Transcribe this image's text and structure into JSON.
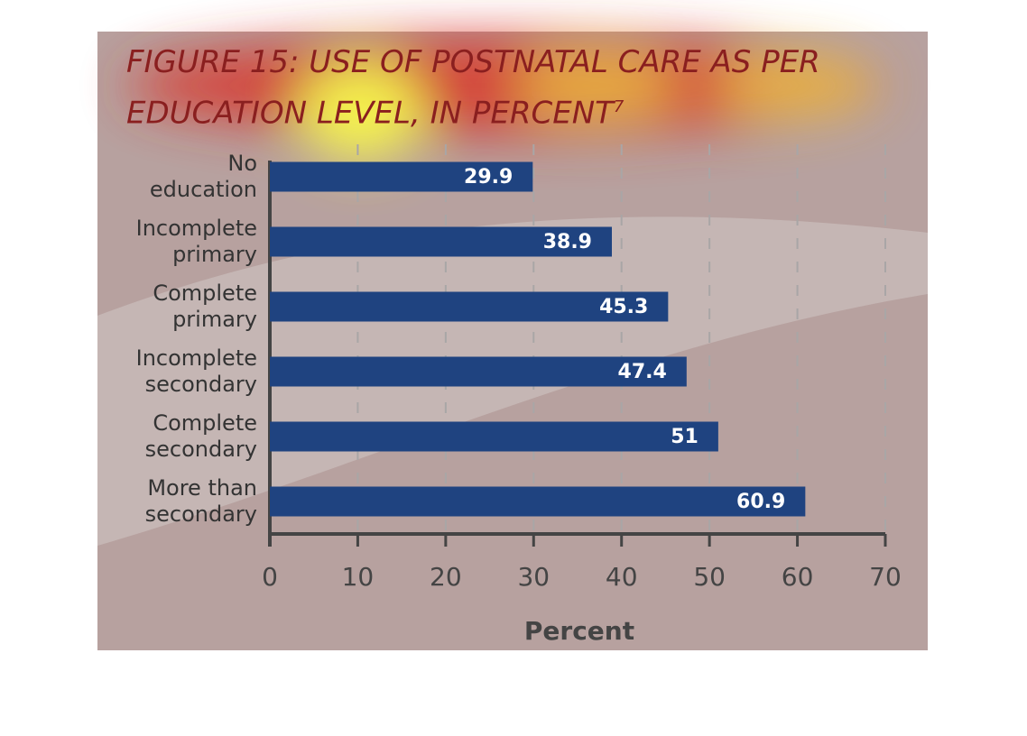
{
  "chart_data": {
    "type": "hbar",
    "title": "FIGURE 15: USE OF POSTNATAL CARE AS PER EDUCATION LEVEL, IN PERCENT",
    "title_note": "7",
    "categories": [
      [
        "No",
        "education"
      ],
      [
        "Incomplete",
        "primary"
      ],
      [
        "Complete",
        "primary"
      ],
      [
        "Incomplete",
        "secondary"
      ],
      [
        "Complete",
        "secondary"
      ],
      [
        "More than",
        "secondary"
      ]
    ],
    "values": [
      29.9,
      38.9,
      45.3,
      47.4,
      51,
      60.9
    ],
    "color": "#1f4380",
    "xlabel": "Percent",
    "xlim": [
      0,
      70
    ],
    "xticks": [
      0,
      10,
      20,
      30,
      40,
      50,
      60,
      70
    ],
    "grid": true
  }
}
